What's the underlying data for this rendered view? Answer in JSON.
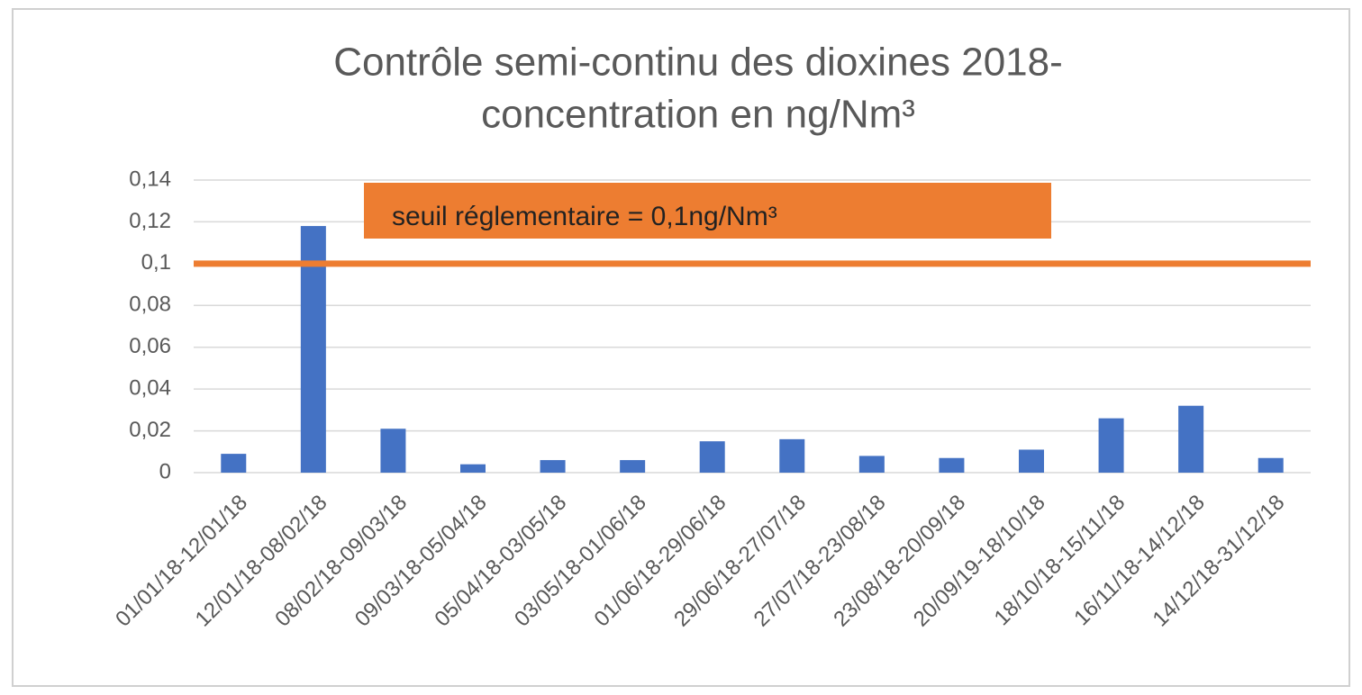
{
  "chart_data": {
    "type": "bar",
    "title": [
      "Contrôle semi-continu des dioxines 2018-",
      "concentration en ng/Nm³"
    ],
    "annotation": "seuil réglementaire = 0,1ng/Nm³",
    "threshold": 0.1,
    "threshold_color": "#ed7d31",
    "categories": [
      "01/01/18-12/01/18",
      "12/01/18-08/02/18",
      "08/02/18-09/03/18",
      "09/03/18-05/04/18",
      "05/04/18-03/05/18",
      "03/05/18-01/06/18",
      "01/06/18-29/06/18",
      "29/06/18-27/07/18",
      "27/07/18-23/08/18",
      "23/08/18-20/09/18",
      "20/09/19-18/10/18",
      "18/10/18-15/11/18",
      "16/11/18-14/12/18",
      "14/12/18-31/12/18"
    ],
    "values": [
      0.009,
      0.118,
      0.021,
      0.004,
      0.006,
      0.006,
      0.015,
      0.016,
      0.008,
      0.007,
      0.011,
      0.026,
      0.032,
      0.007
    ],
    "color": "#4472c4",
    "ylim": [
      0,
      0.14
    ],
    "yticks": [
      0,
      {
        "value": 0.02,
        "label": "0,02"
      },
      {
        "value": 0.04,
        "label": "0,04"
      },
      {
        "value": 0.06,
        "label": "0,06"
      },
      {
        "value": 0.08,
        "label": "0,08"
      },
      {
        "value": 0.1,
        "label": "0,1"
      },
      {
        "value": 0.12,
        "label": "0,12"
      },
      {
        "value": 0.14,
        "label": "0,14"
      }
    ],
    "grid": true
  }
}
